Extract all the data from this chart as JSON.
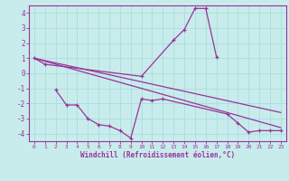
{
  "background_color": "#c8ecec",
  "grid_color": "#aadddd",
  "line_color": "#993399",
  "xlabel": "Windchill (Refroidissement éolien,°C)",
  "xlim": [
    -0.5,
    23.5
  ],
  "ylim": [
    -4.5,
    4.5
  ],
  "yticks": [
    -4,
    -3,
    -2,
    -1,
    0,
    1,
    2,
    3,
    4
  ],
  "xticks": [
    0,
    1,
    2,
    3,
    4,
    5,
    6,
    7,
    8,
    9,
    10,
    11,
    12,
    13,
    14,
    15,
    16,
    17,
    18,
    19,
    20,
    21,
    22,
    23
  ],
  "xtick_labels": [
    "0",
    "1",
    "2",
    "3",
    "4",
    "5",
    "6",
    "7",
    "8",
    "9",
    "10",
    "11",
    "12",
    "13",
    "14",
    "15",
    "16",
    "17",
    "18",
    "19",
    "20",
    "21",
    "22",
    "23"
  ],
  "series0_x": [
    0,
    1,
    10,
    13,
    14,
    15,
    16,
    17
  ],
  "series0_y": [
    1.0,
    0.6,
    -0.2,
    2.2,
    2.9,
    4.3,
    4.3,
    1.1
  ],
  "series1_x": [
    2,
    3,
    4,
    5,
    6,
    7,
    8,
    9,
    10,
    11,
    12,
    18,
    19,
    20,
    21,
    22,
    23
  ],
  "series1_y": [
    -1.1,
    -2.1,
    -2.1,
    -3.0,
    -3.4,
    -3.5,
    -3.8,
    -4.3,
    -1.7,
    -1.8,
    -1.7,
    -2.7,
    -3.3,
    -3.9,
    -3.8,
    -3.8,
    -3.8
  ],
  "trend_line1_x": [
    0,
    23
  ],
  "trend_line1_y": [
    1.0,
    -2.6
  ],
  "trend_line2_x": [
    0,
    23
  ],
  "trend_line2_y": [
    1.0,
    -3.6
  ]
}
